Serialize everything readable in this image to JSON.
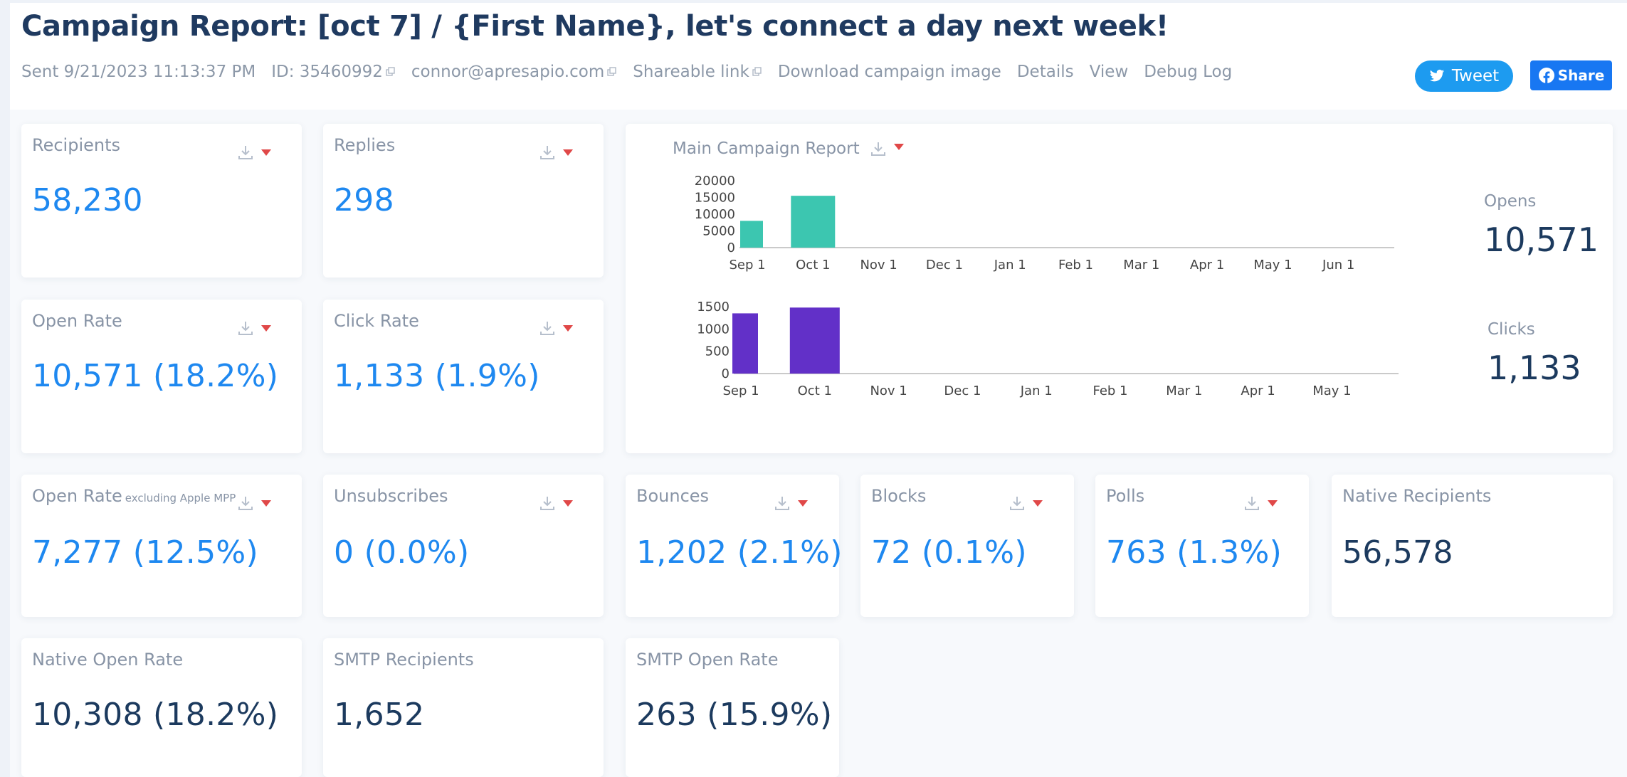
{
  "header": {
    "title": "Campaign Report: [oct 7] / {First Name}, let's connect a day next week!",
    "sent": "Sent 9/21/2023 11:13:37 PM",
    "id": "ID: 35460992",
    "email": "connor@apresapio.com",
    "shareable_link": "Shareable link",
    "download_image": "Download campaign image",
    "details": "Details",
    "view": "View",
    "debug_log": "Debug Log"
  },
  "social": {
    "tweet": "Tweet",
    "share": "Share"
  },
  "colors": {
    "accent_blue": "#1e88f0",
    "dark_value": "#1c3a5e",
    "opens_bar": "#3cc6b0",
    "clicks_bar": "#6230c8",
    "caret": "#e04848"
  },
  "stats": {
    "recipients": {
      "label": "Recipients",
      "value": "58,230"
    },
    "replies": {
      "label": "Replies",
      "value": "298"
    },
    "open_rate": {
      "label": "Open Rate",
      "value": "10,571 (18.2%)"
    },
    "click_rate": {
      "label": "Click Rate",
      "value": "1,133 (1.9%)"
    },
    "open_rate_mpp": {
      "label": "Open Rate",
      "sublabel": "excluding Apple MPP",
      "value": "7,277 (12.5%)"
    },
    "unsubscribes": {
      "label": "Unsubscribes",
      "value": "0 (0.0%)"
    },
    "bounces": {
      "label": "Bounces",
      "value": "1,202 (2.1%)"
    },
    "blocks": {
      "label": "Blocks",
      "value": "72 (0.1%)"
    },
    "polls": {
      "label": "Polls",
      "value": "763 (1.3%)"
    },
    "native_recipients": {
      "label": "Native Recipients",
      "value": "56,578"
    },
    "native_open_rate": {
      "label": "Native Open Rate",
      "value": "10,308 (18.2%)"
    },
    "smtp_recipients": {
      "label": "SMTP Recipients",
      "value": "1,652"
    },
    "smtp_open_rate": {
      "label": "SMTP Open Rate",
      "value": "263 (15.9%)"
    }
  },
  "main_report": {
    "title": "Main Campaign Report",
    "opens_label": "Opens",
    "opens_value": "10,571",
    "clicks_label": "Clicks",
    "clicks_value": "1,133"
  },
  "chart_data": [
    {
      "type": "bar",
      "categories": [
        "Sep 1",
        "Oct 1",
        "Nov 1",
        "Dec 1",
        "Jan 1",
        "Feb 1",
        "Mar 1",
        "Apr 1",
        "May 1",
        "Jun 1"
      ],
      "values": [
        8000,
        15500,
        0,
        0,
        0,
        0,
        0,
        0,
        0,
        0
      ],
      "yticks": [
        0,
        5000,
        10000,
        15000,
        20000
      ],
      "ylim": [
        0,
        20000
      ],
      "color": "#3cc6b0"
    },
    {
      "type": "bar",
      "categories": [
        "Sep 1",
        "Oct 1",
        "Nov 1",
        "Dec 1",
        "Jan 1",
        "Feb 1",
        "Mar 1",
        "Apr 1",
        "May 1"
      ],
      "values": [
        1350,
        1480,
        0,
        0,
        0,
        0,
        0,
        0,
        0
      ],
      "yticks": [
        0,
        500,
        1000,
        1500
      ],
      "ylim": [
        0,
        1500
      ],
      "color": "#6230c8"
    }
  ]
}
